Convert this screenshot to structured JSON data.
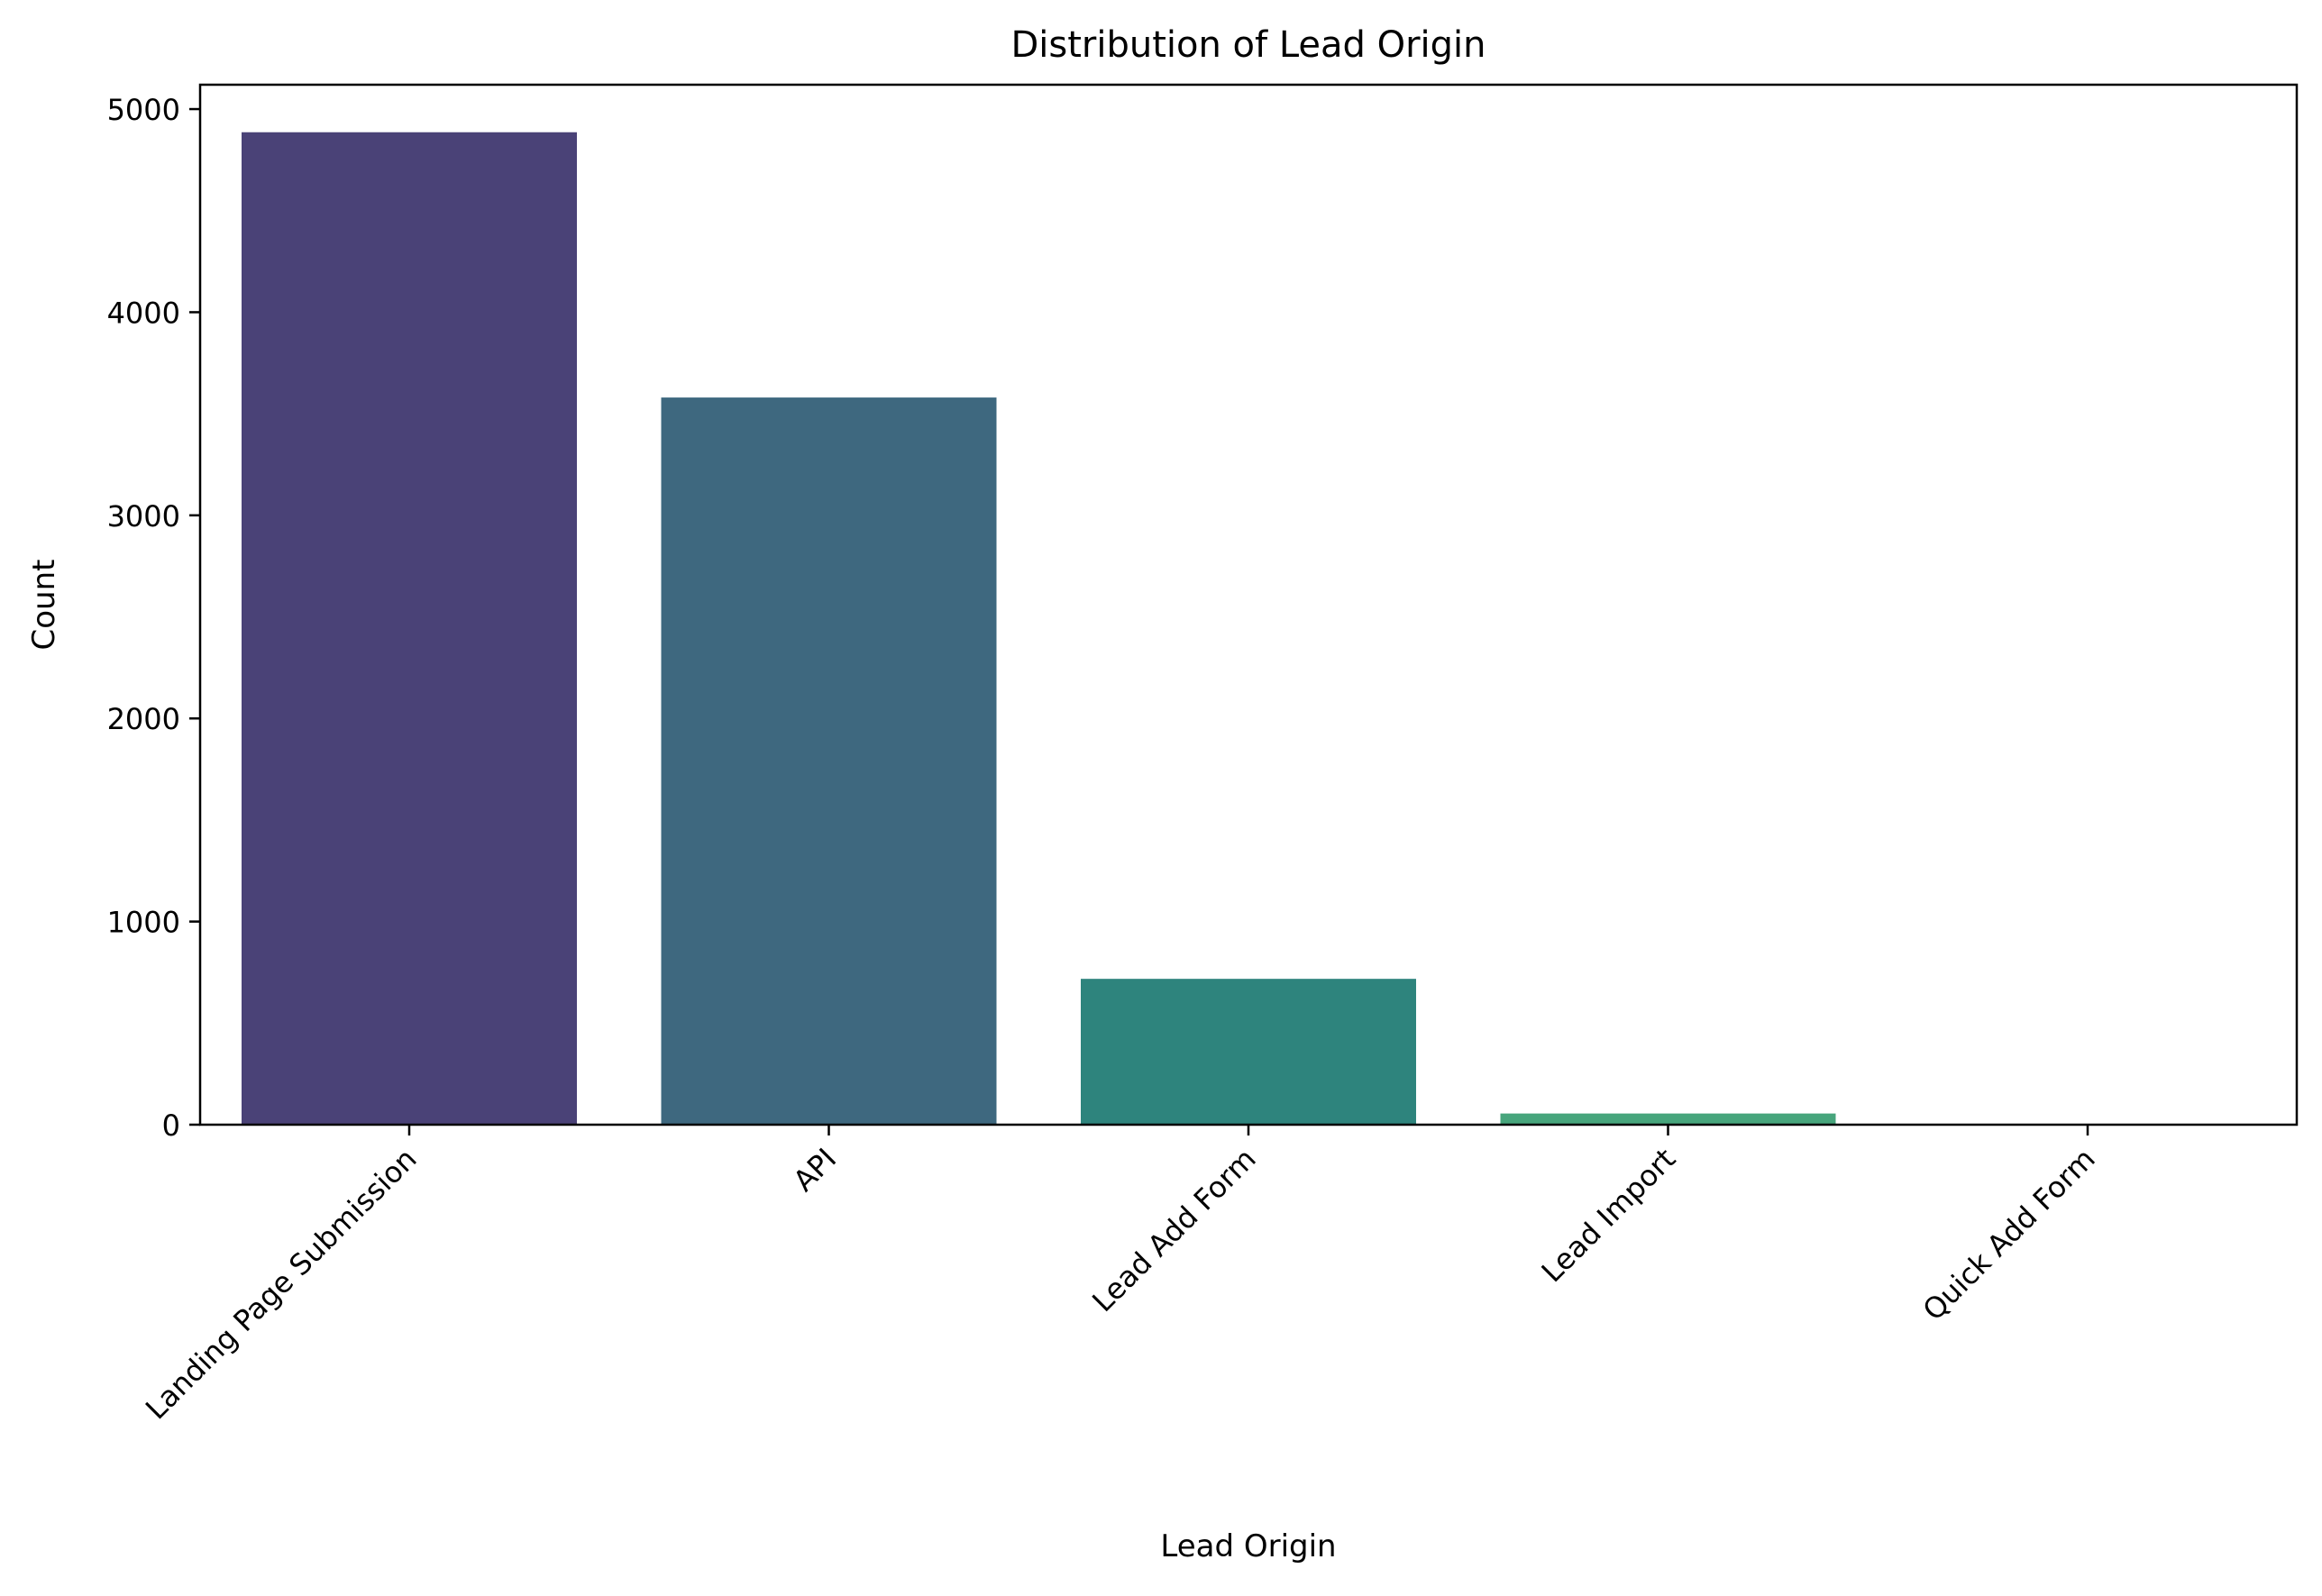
{
  "chart_data": {
    "type": "bar",
    "title": "Distribution of Lead Origin",
    "xlabel": "Lead Origin",
    "ylabel": "Count",
    "categories": [
      "Landing Page Submission",
      "API",
      "Lead Add Form",
      "Lead Import",
      "Quick Add Form"
    ],
    "values": [
      4886,
      3580,
      718,
      55,
      1
    ],
    "colors": [
      "#4a4277",
      "#3e687f",
      "#2e847d",
      "#47a57c",
      "#7ac964"
    ],
    "ylim": [
      0,
      5120
    ],
    "yticks": [
      0,
      1000,
      2000,
      3000,
      4000,
      5000
    ],
    "ytick_labels": [
      "0",
      "1000",
      "2000",
      "3000",
      "4000",
      "5000"
    ],
    "grid": false,
    "legend": "none"
  }
}
